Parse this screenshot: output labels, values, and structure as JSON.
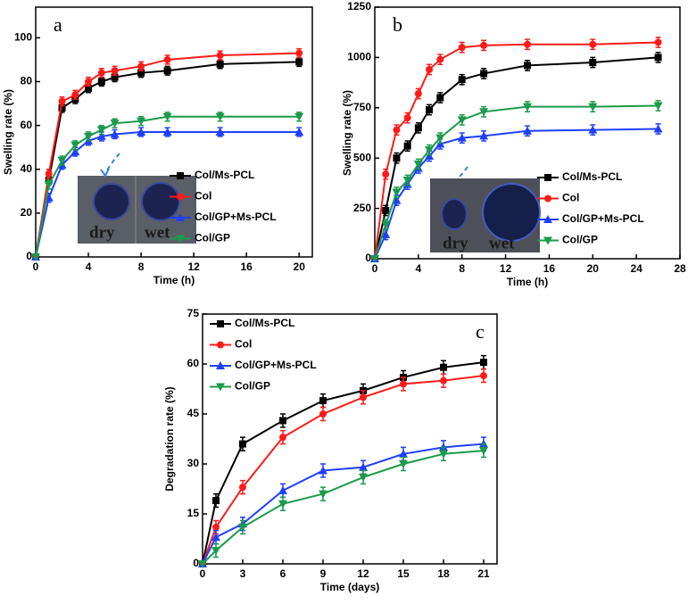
{
  "chart_data": [
    {
      "type": "line",
      "label": "a",
      "xlabel": "Time (h)",
      "ylabel": "Swelling rate (%)",
      "x": [
        0,
        1,
        2,
        3,
        4,
        5,
        6,
        8,
        10,
        14,
        20
      ],
      "xlim": [
        0,
        21
      ],
      "xticks": [
        0,
        4,
        8,
        12,
        16,
        20
      ],
      "ylim": [
        0,
        114
      ],
      "yticks": [
        0,
        20,
        40,
        60,
        80,
        100
      ],
      "legend": "lower right",
      "inset_labels": [
        "dry",
        "wet"
      ],
      "series": [
        {
          "name": "Col/Ms-PCL",
          "color": "#000000",
          "marker": "square",
          "values": [
            0,
            35,
            68,
            72,
            77,
            80,
            82,
            84,
            85,
            88,
            89
          ],
          "errors": [
            0,
            2,
            2,
            2,
            2,
            2,
            2,
            2,
            2,
            2,
            2
          ]
        },
        {
          "name": "Col",
          "color": "#ff1a1a",
          "marker": "circle",
          "values": [
            0,
            38,
            71,
            74,
            80,
            84,
            85,
            87,
            90,
            92,
            93
          ],
          "errors": [
            0,
            2,
            2,
            2,
            2,
            2,
            2,
            2,
            2,
            2,
            2
          ]
        },
        {
          "name": "Col/GP+Ms-PCL",
          "color": "#1f3fff",
          "marker": "triangle-up",
          "values": [
            0,
            27,
            42,
            48,
            53,
            55,
            56,
            57,
            57,
            57,
            57
          ],
          "errors": [
            0,
            2,
            2,
            2,
            2,
            2,
            2,
            2,
            2,
            2,
            2
          ]
        },
        {
          "name": "Col/GP",
          "color": "#1a9a4a",
          "marker": "triangle-down",
          "values": [
            0,
            33,
            44,
            51,
            55,
            58,
            61,
            62,
            64,
            64,
            64
          ],
          "errors": [
            0,
            2,
            2,
            2,
            2,
            2,
            2,
            2,
            2,
            2,
            2
          ]
        }
      ]
    },
    {
      "type": "line",
      "label": "b",
      "xlabel": "Time (h)",
      "ylabel": "Swelling rate (%)",
      "x": [
        0,
        1,
        2,
        3,
        4,
        5,
        6,
        8,
        10,
        14,
        20,
        26
      ],
      "xlim": [
        0,
        28
      ],
      "xticks": [
        0,
        4,
        8,
        12,
        16,
        20,
        24,
        28
      ],
      "ylim": [
        0,
        1250
      ],
      "yticks": [
        0,
        250,
        500,
        750,
        1000,
        1250
      ],
      "legend": "lower right",
      "inset_labels": [
        "dry",
        "wet"
      ],
      "series": [
        {
          "name": "Col/Ms-PCL",
          "color": "#000000",
          "marker": "square",
          "values": [
            0,
            240,
            500,
            560,
            650,
            740,
            800,
            890,
            920,
            960,
            975,
            1000
          ],
          "errors": [
            0,
            25,
            25,
            25,
            25,
            25,
            25,
            25,
            25,
            25,
            25,
            25
          ]
        },
        {
          "name": "Col",
          "color": "#ff1a1a",
          "marker": "circle",
          "values": [
            0,
            420,
            640,
            700,
            820,
            940,
            990,
            1050,
            1060,
            1065,
            1065,
            1075
          ],
          "errors": [
            0,
            25,
            25,
            25,
            25,
            25,
            25,
            25,
            25,
            25,
            25,
            25
          ]
        },
        {
          "name": "Col/GP+Ms-PCL",
          "color": "#1f3fff",
          "marker": "triangle-up",
          "values": [
            0,
            120,
            290,
            370,
            450,
            510,
            570,
            600,
            610,
            635,
            640,
            645
          ],
          "errors": [
            0,
            25,
            25,
            25,
            25,
            25,
            25,
            25,
            25,
            25,
            25,
            25
          ]
        },
        {
          "name": "Col/GP",
          "color": "#1a9a4a",
          "marker": "triangle-down",
          "values": [
            0,
            170,
            330,
            390,
            470,
            540,
            600,
            690,
            730,
            755,
            755,
            760
          ],
          "errors": [
            0,
            25,
            25,
            25,
            25,
            25,
            25,
            25,
            25,
            25,
            25,
            25
          ]
        }
      ]
    },
    {
      "type": "line",
      "label": "c",
      "xlabel": "Time (days)",
      "ylabel": "Degradation rate (%)",
      "x": [
        0,
        1,
        3,
        6,
        9,
        12,
        15,
        18,
        21
      ],
      "xlim": [
        0,
        22
      ],
      "xticks": [
        0,
        3,
        6,
        9,
        12,
        15,
        18,
        21
      ],
      "ylim": [
        0,
        75
      ],
      "yticks": [
        0,
        15,
        30,
        45,
        60,
        75
      ],
      "legend": "upper left",
      "series": [
        {
          "name": "Col/Ms-PCL",
          "color": "#000000",
          "marker": "square",
          "values": [
            0,
            19,
            36,
            43,
            49,
            52,
            56,
            59,
            60.5
          ],
          "errors": [
            0,
            2,
            2,
            2,
            2,
            2,
            2,
            2,
            2
          ]
        },
        {
          "name": "Col",
          "color": "#ff1a1a",
          "marker": "circle",
          "values": [
            0,
            11,
            23,
            38,
            45,
            50,
            54,
            55,
            56.5
          ],
          "errors": [
            0,
            2,
            2,
            2,
            2,
            2,
            2,
            2,
            2
          ]
        },
        {
          "name": "Col/GP+Ms-PCL",
          "color": "#1f3fff",
          "marker": "triangle-up",
          "values": [
            0,
            8,
            12,
            22,
            28,
            29,
            33,
            35,
            36
          ],
          "errors": [
            0,
            2,
            2,
            2,
            2,
            2,
            2,
            2,
            2
          ]
        },
        {
          "name": "Col/GP",
          "color": "#1a9a4a",
          "marker": "triangle-down",
          "values": [
            0,
            4,
            11,
            18,
            21,
            26,
            30,
            33,
            34
          ],
          "errors": [
            0,
            2,
            2,
            2,
            2,
            2,
            2,
            2,
            2
          ]
        }
      ]
    }
  ]
}
